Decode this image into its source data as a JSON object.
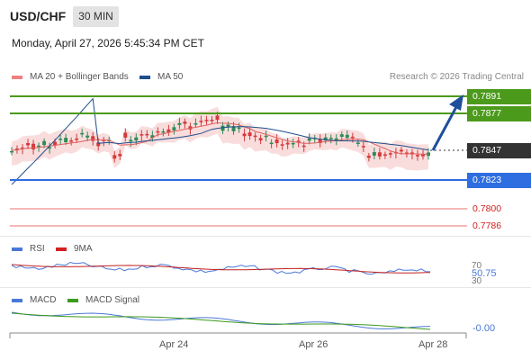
{
  "header": {
    "symbol": "USD/CHF",
    "timeframe": "30 MIN",
    "timestamp": "Monday, April 27, 2026 5:45:34 PM CET"
  },
  "main_chart": {
    "legend": [
      {
        "label": "MA 20 + Bollinger Bands",
        "color": "#f08080"
      },
      {
        "label": "MA 50",
        "color": "#1f4e8c"
      }
    ],
    "credit": "Research © 2026 Trading Central",
    "levels": [
      {
        "value": "0.7891",
        "style": "green-box",
        "color": "#4c9a1c"
      },
      {
        "value": "0.7877",
        "style": "green-box",
        "color": "#4c9a1c"
      },
      {
        "value": "0.7847",
        "style": "current-box",
        "color": "#333333"
      },
      {
        "value": "0.7823",
        "style": "blue-box",
        "color": "#2f6ee0"
      },
      {
        "value": "0.7800",
        "style": "red-text",
        "color": "#d42020"
      },
      {
        "value": "0.7786",
        "style": "red-text",
        "color": "#d42020"
      }
    ],
    "candle_colors": {
      "up": "#2e8b57",
      "down": "#d43a3a"
    },
    "arrow_color": "#1f4e9c"
  },
  "rsi_panel": {
    "legend": [
      {
        "label": "RSI",
        "color": "#4a78d8"
      },
      {
        "label": "9MA",
        "color": "#d42020"
      }
    ],
    "tick_top": "70",
    "value": "50.75",
    "tick_bottom": "30"
  },
  "macd_panel": {
    "legend": [
      {
        "label": "MACD",
        "color": "#4a78d8"
      },
      {
        "label": "MACD Signal",
        "color": "#3c9a1c"
      }
    ],
    "value": "-0.00"
  },
  "x_axis": {
    "labels": [
      "Apr 24",
      "Apr 26",
      "Apr 28"
    ]
  }
}
